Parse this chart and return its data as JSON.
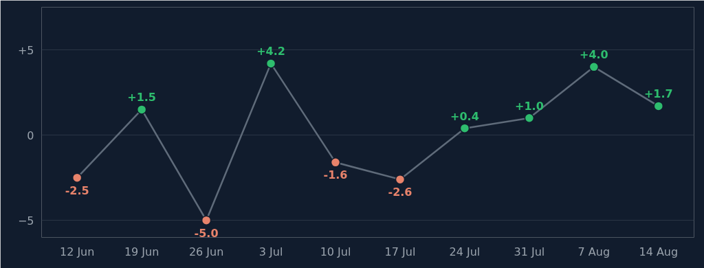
{
  "chart_data": {
    "type": "line",
    "categories": [
      "12 Jun",
      "19 Jun",
      "26 Jun",
      "3 Jul",
      "10 Jul",
      "17 Jul",
      "24 Jul",
      "31 Jul",
      "7 Aug",
      "14 Aug"
    ],
    "series": [
      {
        "color": "#5f6b7a",
        "values": [
          -2.5,
          1.5,
          -5.0,
          4.2,
          -1.6,
          -2.6,
          0.4,
          1.0,
          4.0,
          1.7
        ],
        "colors": [
          "#e8836b",
          "#2ebd6e",
          "#e8836b",
          "#2ebd6e",
          "#e8836b",
          "#e8836b",
          "#2ebd6e",
          "#2ebd6e",
          "#2ebd6e",
          "#2ebd6e"
        ],
        "value_labels": [
          "-2.5",
          "+1.5",
          "-5.0",
          "+4.2",
          "-1.6",
          "-2.6",
          "+0.4",
          "+1.0",
          "+4.0",
          "+1.7"
        ]
      }
    ],
    "ylim": [
      -6,
      7.5
    ],
    "yticks": [
      {
        "value": 5,
        "label": "+5"
      },
      0,
      {
        "value": -5,
        "label": "−5"
      }
    ],
    "grid": "y",
    "marker": "circle",
    "line_style": "solid"
  }
}
